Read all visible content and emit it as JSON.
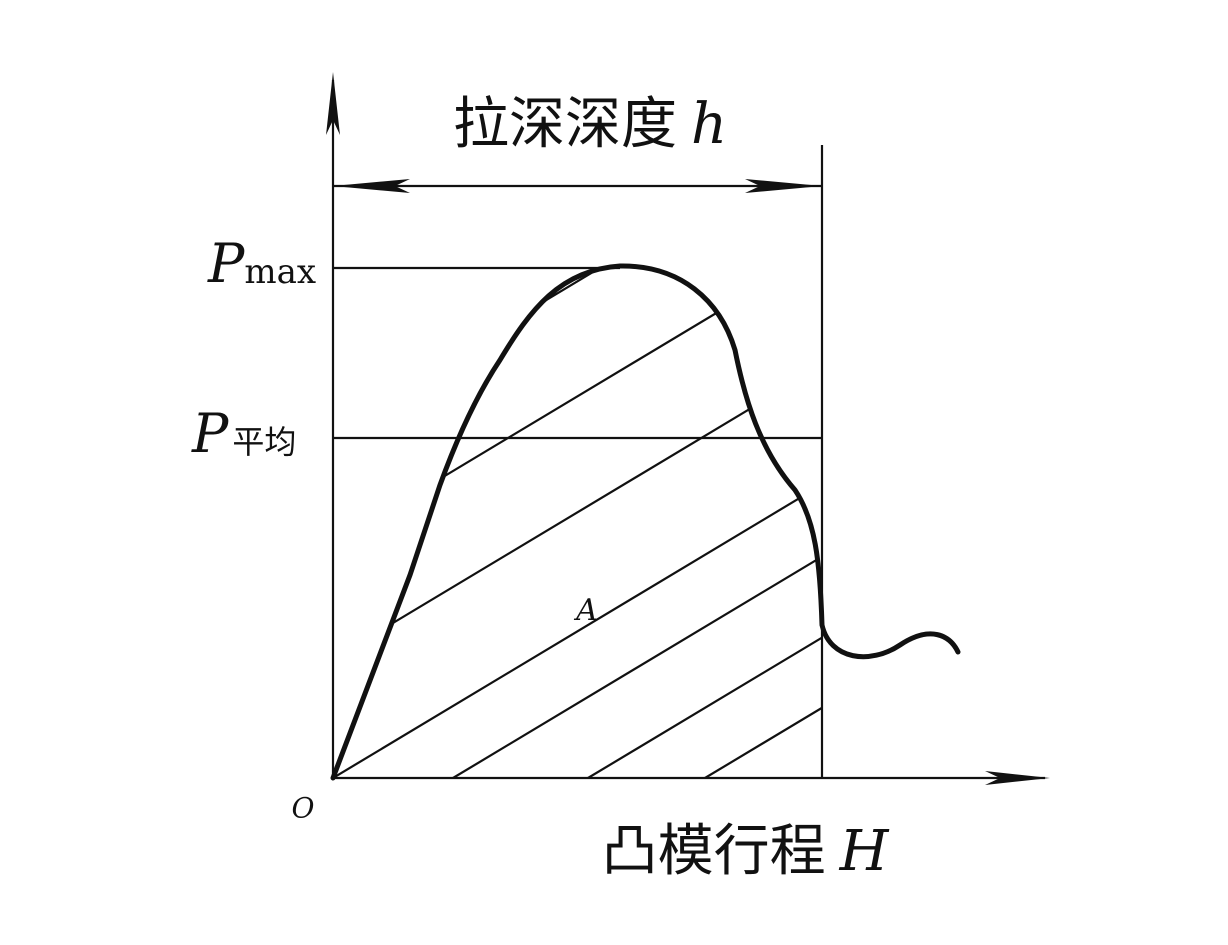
{
  "title": {
    "text": "拉深深度",
    "variable": "h"
  },
  "p_max": {
    "symbol": "P",
    "subscript": "max"
  },
  "p_avg": {
    "symbol": "P",
    "subscript": "平均"
  },
  "area_label": "A",
  "origin_label": "O",
  "x_axis": {
    "text": "凸模行程",
    "variable": "H"
  }
}
